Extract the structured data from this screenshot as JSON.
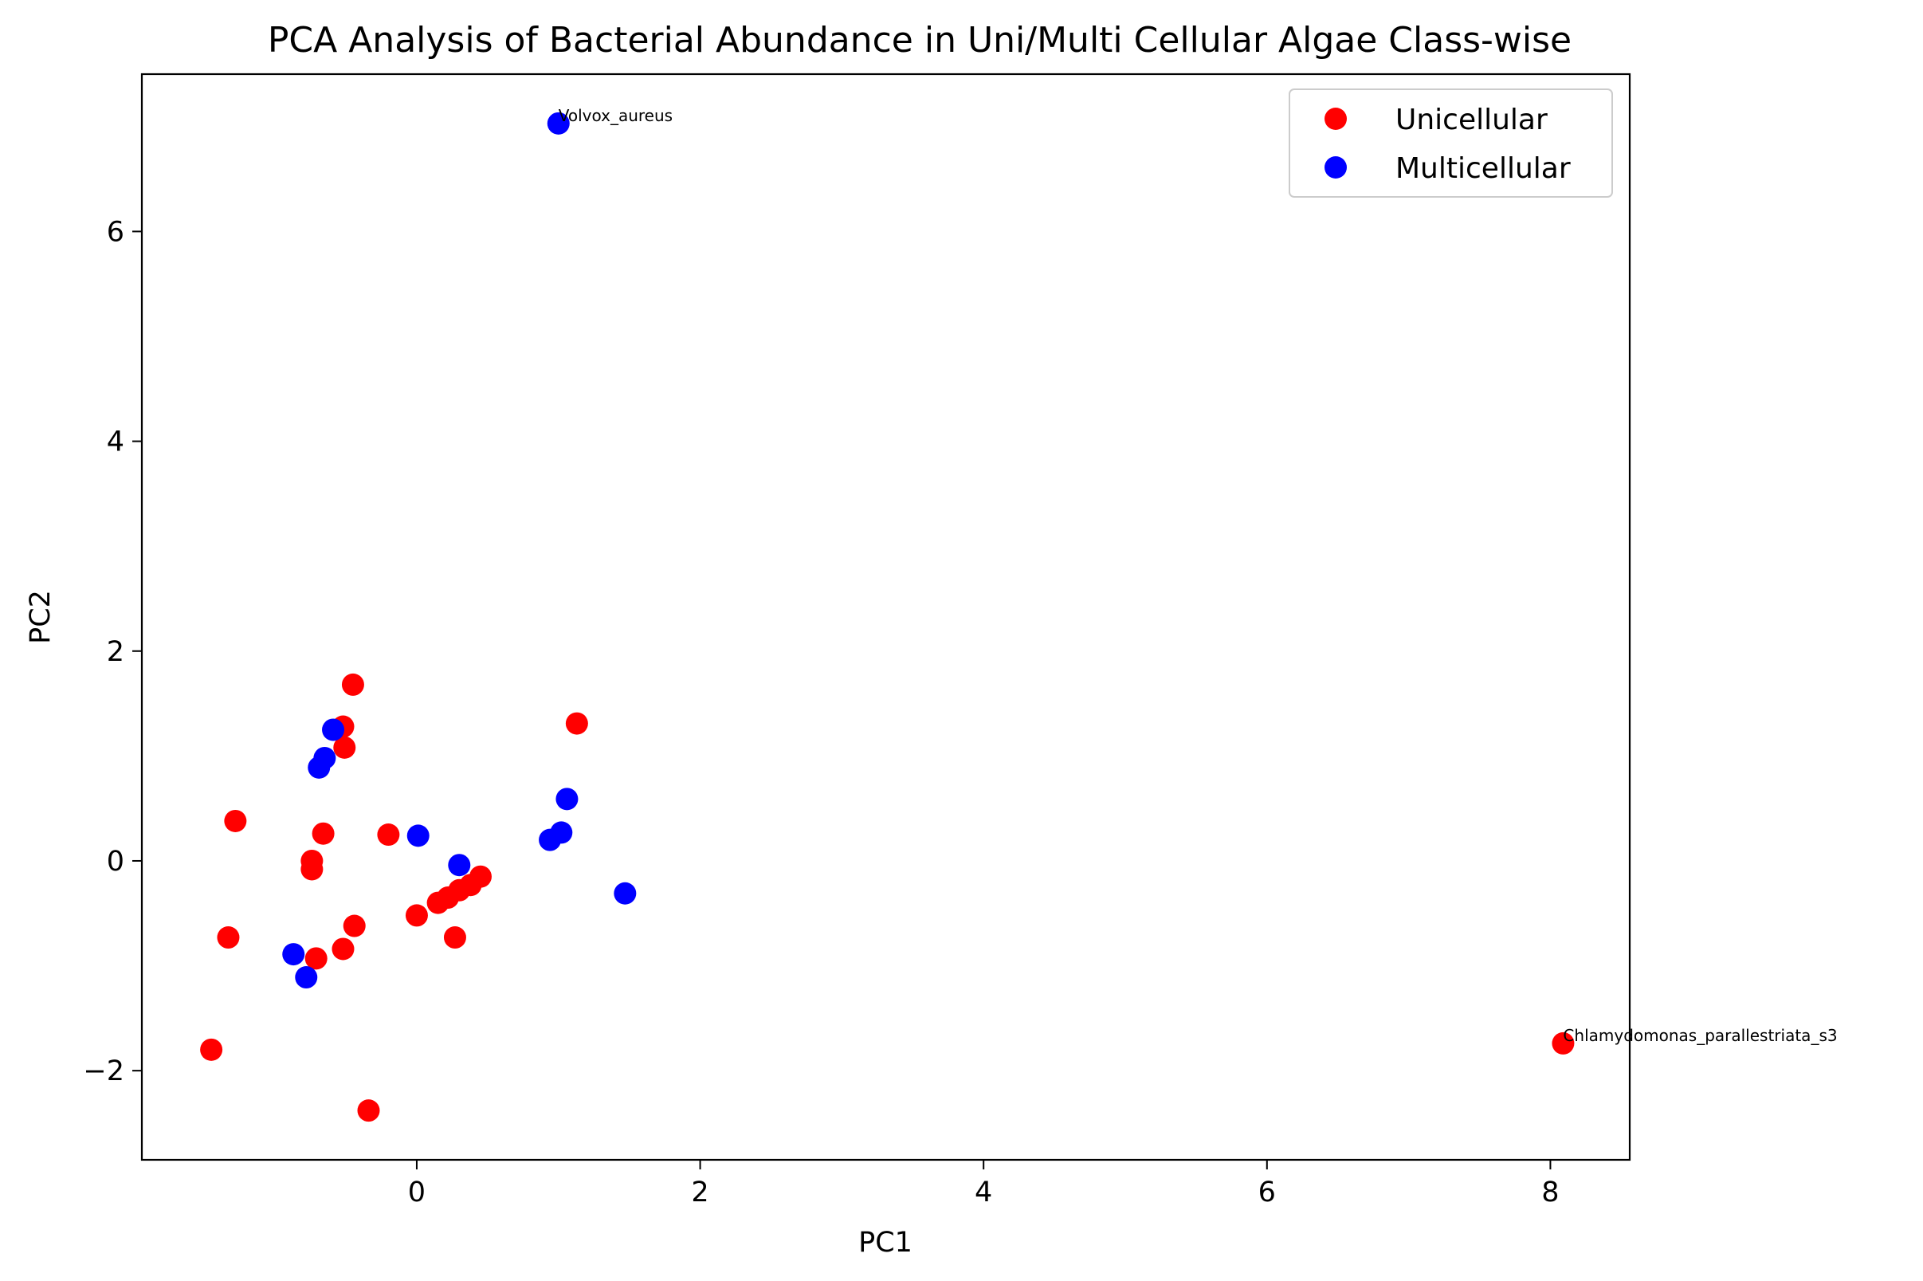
{
  "chart_data": {
    "type": "scatter",
    "title": "PCA Analysis of Bacterial Abundance in Uni/Multi Cellular Algae Class-wise",
    "xlabel": "PC1",
    "ylabel": "PC2",
    "xlim": [
      -1.94,
      8.56
    ],
    "ylim": [
      -2.85,
      7.5
    ],
    "xticks": [
      0,
      2,
      4,
      6,
      8
    ],
    "yticks": [
      -2,
      0,
      2,
      4,
      6
    ],
    "xtick_labels": [
      "0",
      "2",
      "4",
      "6",
      "8"
    ],
    "ytick_labels": [
      "−2",
      "0",
      "2",
      "4",
      "6"
    ],
    "grid": false,
    "legend_position": "top-right",
    "series": [
      {
        "name": "Unicellular",
        "color": "#ff0000",
        "points": [
          {
            "x": -1.45,
            "y": -1.8
          },
          {
            "x": -1.33,
            "y": -0.73
          },
          {
            "x": -1.28,
            "y": 0.38
          },
          {
            "x": -0.74,
            "y": 0.0
          },
          {
            "x": -0.74,
            "y": -0.08
          },
          {
            "x": -0.71,
            "y": -0.93
          },
          {
            "x": -0.66,
            "y": 0.26
          },
          {
            "x": -0.52,
            "y": 1.28
          },
          {
            "x": -0.52,
            "y": -0.84
          },
          {
            "x": -0.51,
            "y": 1.08
          },
          {
            "x": -0.45,
            "y": 1.68
          },
          {
            "x": -0.44,
            "y": -0.62
          },
          {
            "x": -0.34,
            "y": -2.38
          },
          {
            "x": -0.2,
            "y": 0.25
          },
          {
            "x": 0.0,
            "y": -0.52
          },
          {
            "x": 0.15,
            "y": -0.4
          },
          {
            "x": 0.22,
            "y": -0.35
          },
          {
            "x": 0.27,
            "y": -0.73
          },
          {
            "x": 0.3,
            "y": -0.28
          },
          {
            "x": 0.38,
            "y": -0.23
          },
          {
            "x": 0.45,
            "y": -0.15
          },
          {
            "x": 1.13,
            "y": 1.31
          },
          {
            "x": 8.09,
            "y": -1.74,
            "label": "Chlamydomonas_parallestriata_s3"
          }
        ]
      },
      {
        "name": "Multicellular",
        "color": "#0000ff",
        "points": [
          {
            "x": -0.87,
            "y": -0.89
          },
          {
            "x": -0.78,
            "y": -1.11
          },
          {
            "x": -0.69,
            "y": 0.89
          },
          {
            "x": -0.65,
            "y": 0.98
          },
          {
            "x": -0.59,
            "y": 1.25
          },
          {
            "x": 0.01,
            "y": 0.24
          },
          {
            "x": 0.3,
            "y": -0.04
          },
          {
            "x": 0.94,
            "y": 0.2
          },
          {
            "x": 1.0,
            "y": 7.03,
            "label": "Volvox_aureus"
          },
          {
            "x": 1.02,
            "y": 0.27
          },
          {
            "x": 1.06,
            "y": 0.59
          },
          {
            "x": 1.47,
            "y": -0.31
          }
        ]
      }
    ]
  }
}
